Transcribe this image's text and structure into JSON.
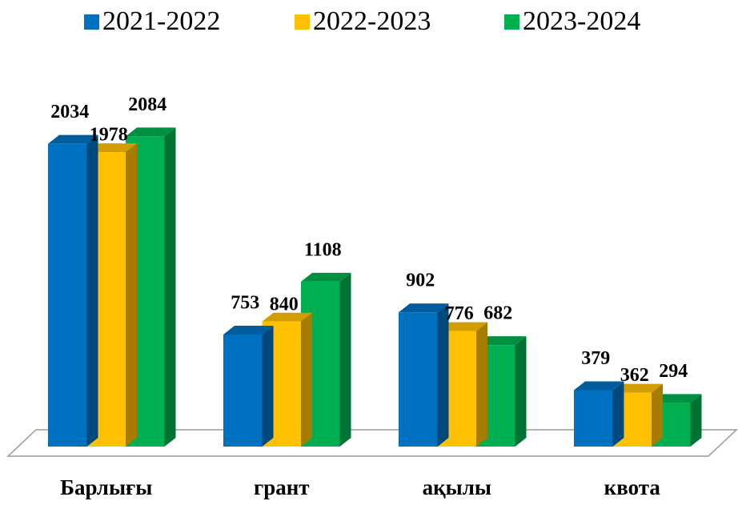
{
  "chart_data": {
    "type": "bar3d",
    "categories": [
      "Барлығы",
      "грант",
      "ақылы",
      "квота"
    ],
    "series": [
      {
        "name": "2021-2022",
        "color": "#0070c0",
        "values": [
          2034,
          753,
          902,
          379
        ]
      },
      {
        "name": "2022-2023",
        "color": "#ffc000",
        "values": [
          1978,
          840,
          776,
          362
        ]
      },
      {
        "name": "2023-2024",
        "color": "#00b050",
        "values": [
          2084,
          1108,
          682,
          294
        ]
      }
    ],
    "legend": "top"
  }
}
